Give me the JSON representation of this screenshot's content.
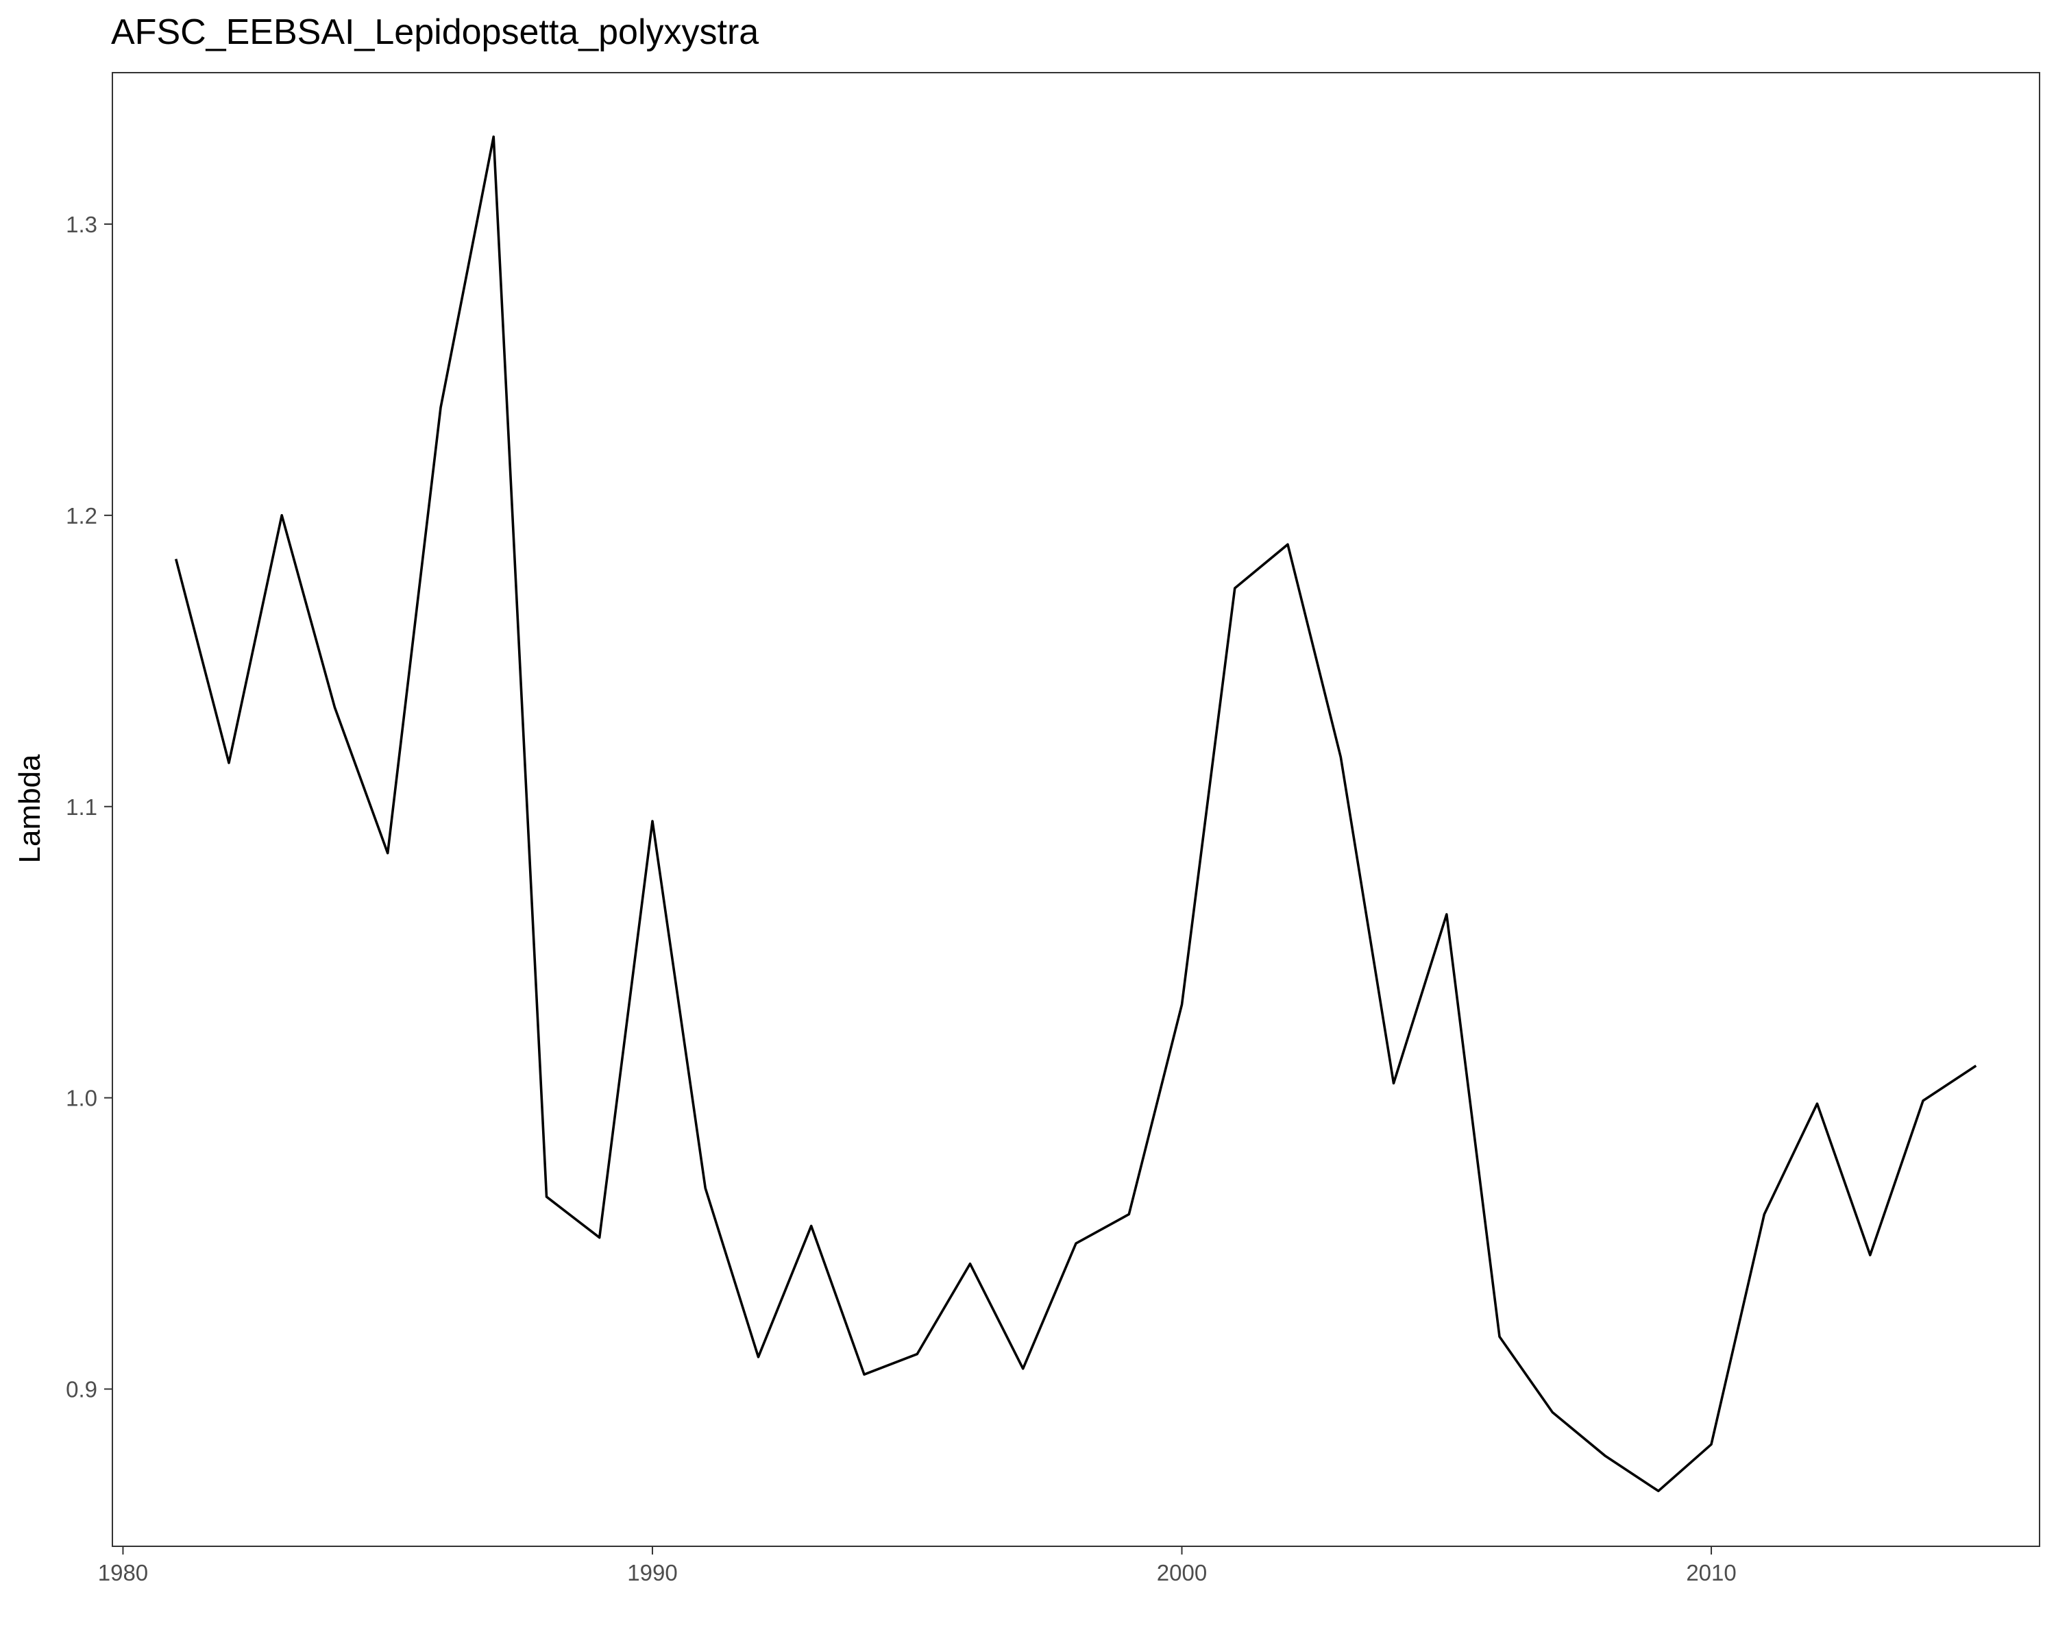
{
  "chart_data": {
    "type": "line",
    "title": "AFSC_EEBSAI_Lepidopsetta_polyxystra",
    "xlabel": "",
    "ylabel": "Lambda",
    "xlim": [
      1979.8,
      2016.2
    ],
    "ylim": [
      0.846,
      1.352
    ],
    "x_ticks": [
      1980,
      1990,
      2000,
      2010
    ],
    "x_tick_labels": [
      "1980",
      "1990",
      "2000",
      "2010"
    ],
    "y_ticks": [
      0.9,
      1.0,
      1.1,
      1.2,
      1.3
    ],
    "y_tick_labels": [
      "0.9",
      "1.0",
      "1.1",
      "1.2",
      "1.3"
    ],
    "grid": false,
    "line_color": "#000000",
    "series": [
      {
        "x": [
          1981,
          1982,
          1983,
          1984,
          1985,
          1986,
          1987,
          1988,
          1989,
          1990,
          1991,
          1992,
          1993,
          1994,
          1995,
          1996,
          1997,
          1998,
          1999,
          2000,
          2001,
          2002,
          2003,
          2004,
          2005,
          2006,
          2007,
          2008,
          2009,
          2010,
          2011,
          2012,
          2013,
          2014,
          2015
        ],
        "values": [
          1.185,
          1.115,
          1.2,
          1.134,
          1.084,
          1.237,
          1.33,
          0.966,
          0.952,
          1.095,
          0.969,
          0.911,
          0.956,
          0.905,
          0.912,
          0.943,
          0.907,
          0.95,
          0.96,
          1.032,
          1.175,
          1.19,
          1.117,
          1.005,
          1.063,
          0.918,
          0.892,
          0.877,
          0.865,
          0.881,
          0.96,
          0.998,
          0.946,
          0.999,
          1.011
        ]
      }
    ]
  }
}
